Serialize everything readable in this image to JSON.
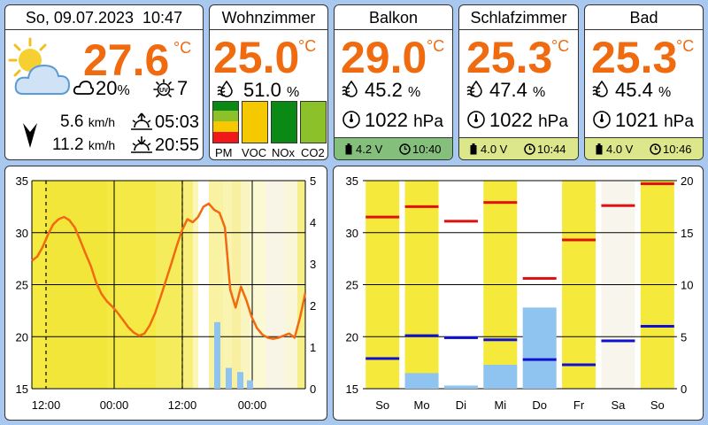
{
  "header": {
    "date": "So, 09.07.2023",
    "time": "10:47"
  },
  "outdoor": {
    "temp": "27.6",
    "unit": "°C",
    "cloud": "20",
    "cloud_unit": "%",
    "uv": "7",
    "wind_speed": "5.6",
    "wind_gust": "11.2",
    "wind_unit": "km/h",
    "sunrise": "05:03",
    "sunset": "20:55"
  },
  "rooms": [
    {
      "name": "Wohnzimmer",
      "temp": "25.0",
      "unit": "°C",
      "humidity": "51.0",
      "hum_unit": "%",
      "aq_labels": [
        "PM",
        "VOC",
        "NOx",
        "CO2"
      ]
    },
    {
      "name": "Balkon",
      "temp": "29.0",
      "unit": "°C",
      "humidity": "45.2",
      "hum_unit": "%",
      "pressure": "1022",
      "press_unit": "hPa",
      "battery": "4.2 V",
      "updated": "10:40",
      "status_color": "#84c07c"
    },
    {
      "name": "Schlafzimmer",
      "temp": "25.3",
      "unit": "°C",
      "humidity": "47.4",
      "hum_unit": "%",
      "pressure": "1022",
      "press_unit": "hPa",
      "battery": "4.0 V",
      "updated": "10:44",
      "status_color": "#dce68a"
    },
    {
      "name": "Bad",
      "temp": "25.3",
      "unit": "°C",
      "humidity": "45.4",
      "hum_unit": "%",
      "pressure": "1021",
      "press_unit": "hPa",
      "battery": "4.0 V",
      "updated": "10:46",
      "status_color": "#dce68a"
    }
  ],
  "colors": {
    "accent": "#f06a10",
    "sun": "#f5e83c",
    "rain": "#90c4f0",
    "max": "#e01010",
    "min": "#1010d0"
  },
  "chart_data": [
    {
      "type": "line",
      "title": "",
      "x_ticks": [
        "12:00",
        "00:00",
        "12:00",
        "00:00"
      ],
      "y_left": {
        "range": [
          15,
          35
        ],
        "ticks": [
          15,
          20,
          25,
          30,
          35
        ]
      },
      "y_right": {
        "range": [
          0,
          5
        ],
        "ticks": [
          0,
          1,
          2,
          3,
          4,
          5
        ]
      },
      "grid": true,
      "series": [
        {
          "values": [
            27.3,
            27.7,
            28.6,
            29.8,
            30.8,
            31.3,
            31.5,
            31.2,
            30.5,
            29.3,
            28.0,
            26.8,
            25.2,
            24.1,
            23.4,
            22.9,
            22.3,
            21.6,
            20.9,
            20.4,
            20.1,
            20.3,
            21.1,
            22.3,
            23.8,
            25.4,
            27.0,
            28.7,
            30.2,
            31.3,
            31.0,
            31.5,
            32.5,
            32.8,
            32.2,
            31.9,
            30.5,
            24.5,
            22.8,
            24.8,
            23.5,
            21.9,
            20.8,
            20.2,
            19.9,
            19.8,
            19.9,
            20.1,
            20.3,
            19.9,
            21.8,
            24.2
          ]
        },
        {
          "type": "bar",
          "values": [
            1.6,
            0.5,
            0.4,
            0.2
          ]
        }
      ]
    },
    {
      "type": "bar",
      "categories": [
        "So",
        "Mo",
        "Di",
        "Mi",
        "Do",
        "Fr",
        "Sa",
        "So"
      ],
      "y_left": {
        "range": [
          15,
          35
        ],
        "ticks": [
          15,
          20,
          25,
          30,
          35
        ]
      },
      "y_right": {
        "range": [
          0,
          20
        ],
        "ticks": [
          0,
          5,
          10,
          15,
          20
        ]
      },
      "grid": true,
      "series": [
        {
          "values": [
            31.5,
            32.5,
            31.1,
            32.9,
            25.6,
            29.3,
            32.6,
            34.7
          ]
        },
        {
          "values": [
            17.9,
            20.1,
            19.9,
            19.7,
            17.8,
            17.3,
            19.6,
            21.0
          ]
        },
        {
          "values": [
            0,
            1.5,
            0.3,
            2.3,
            7.8,
            0,
            0,
            0
          ]
        },
        {
          "values": [
            1,
            1,
            0,
            1,
            0,
            1,
            0.15,
            1
          ]
        }
      ]
    }
  ]
}
